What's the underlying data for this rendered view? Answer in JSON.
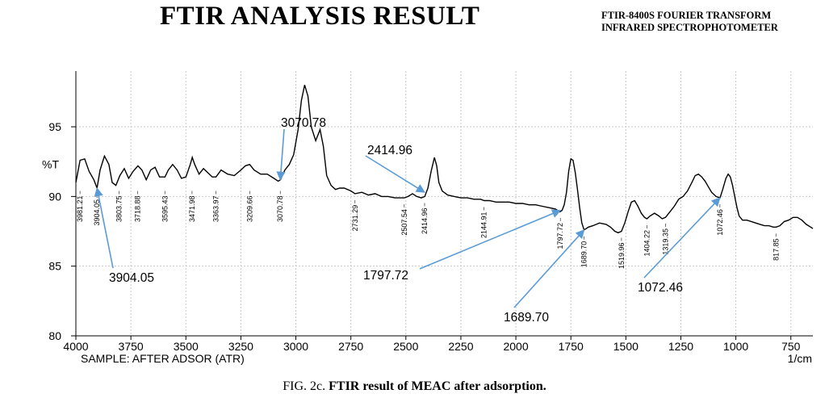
{
  "title": "FTIR ANALYSIS RESULT",
  "instrument_line1": "FTIR-8400S FOURIER TRANSFORM",
  "instrument_line2": "INFRARED SPECTROPHOTOMETER",
  "caption_prefix": "FIG. 2c.",
  "caption_text": "FTIR result of MEAC after adsorption.",
  "colors": {
    "spectrum": "#000000",
    "arrow": "#5b9bd5",
    "grid": "#c8c8c8"
  },
  "chart_data": {
    "type": "line",
    "xlabel": "SAMPLE: AFTER ADSOR (ATR)",
    "xunit": "1/cm",
    "ylabel": "%T",
    "xlim": [
      4000,
      650
    ],
    "ylim": [
      80,
      99
    ],
    "x_ticks": [
      4000,
      3750,
      3500,
      3250,
      3000,
      2750,
      2500,
      2250,
      2000,
      1750,
      1500,
      1250,
      1000,
      750
    ],
    "x_tick_labels": [
      "4000",
      "3750",
      "3500",
      "3250",
      "3000",
      "2750",
      "2500",
      "2250",
      "2000",
      "1750",
      "1500",
      "1250",
      "1000",
      "750"
    ],
    "y_ticks": [
      80,
      85,
      90,
      95
    ],
    "y_tick_labels": [
      "80",
      "85",
      "90",
      "95"
    ],
    "grid": true,
    "series": [
      {
        "points": [
          [
            4000,
            91.0
          ],
          [
            3981,
            92.6
          ],
          [
            3960,
            92.7
          ],
          [
            3940,
            91.8
          ],
          [
            3918,
            91.2
          ],
          [
            3904,
            90.6
          ],
          [
            3890,
            91.9
          ],
          [
            3870,
            92.9
          ],
          [
            3850,
            92.3
          ],
          [
            3835,
            91.0
          ],
          [
            3818,
            90.8
          ],
          [
            3800,
            91.5
          ],
          [
            3780,
            92.0
          ],
          [
            3760,
            91.3
          ],
          [
            3740,
            91.8
          ],
          [
            3718,
            92.2
          ],
          [
            3700,
            91.9
          ],
          [
            3680,
            91.2
          ],
          [
            3660,
            91.9
          ],
          [
            3640,
            92.1
          ],
          [
            3620,
            91.4
          ],
          [
            3595,
            91.4
          ],
          [
            3580,
            91.9
          ],
          [
            3560,
            92.3
          ],
          [
            3540,
            91.9
          ],
          [
            3520,
            91.3
          ],
          [
            3500,
            91.4
          ],
          [
            3480,
            92.3
          ],
          [
            3471,
            92.8
          ],
          [
            3460,
            92.3
          ],
          [
            3440,
            91.6
          ],
          [
            3420,
            92.0
          ],
          [
            3400,
            91.7
          ],
          [
            3380,
            91.4
          ],
          [
            3363,
            91.4
          ],
          [
            3340,
            91.9
          ],
          [
            3310,
            91.6
          ],
          [
            3280,
            91.5
          ],
          [
            3250,
            91.9
          ],
          [
            3230,
            92.2
          ],
          [
            3210,
            92.3
          ],
          [
            3190,
            91.9
          ],
          [
            3160,
            91.6
          ],
          [
            3130,
            91.6
          ],
          [
            3100,
            91.3
          ],
          [
            3080,
            91.1
          ],
          [
            3070,
            91.2
          ],
          [
            3050,
            91.9
          ],
          [
            3030,
            92.3
          ],
          [
            3010,
            93.0
          ],
          [
            2990,
            94.8
          ],
          [
            2975,
            96.9
          ],
          [
            2960,
            98.0
          ],
          [
            2945,
            97.2
          ],
          [
            2930,
            95.0
          ],
          [
            2910,
            94.0
          ],
          [
            2890,
            94.8
          ],
          [
            2875,
            93.6
          ],
          [
            2860,
            91.5
          ],
          [
            2840,
            90.8
          ],
          [
            2820,
            90.5
          ],
          [
            2800,
            90.6
          ],
          [
            2780,
            90.6
          ],
          [
            2750,
            90.4
          ],
          [
            2731,
            90.2
          ],
          [
            2700,
            90.3
          ],
          [
            2670,
            90.1
          ],
          [
            2640,
            90.2
          ],
          [
            2610,
            90.0
          ],
          [
            2580,
            90.0
          ],
          [
            2550,
            89.9
          ],
          [
            2520,
            89.9
          ],
          [
            2507,
            89.9
          ],
          [
            2490,
            90.0
          ],
          [
            2470,
            90.2
          ],
          [
            2450,
            90.0
          ],
          [
            2430,
            89.9
          ],
          [
            2414,
            90.0
          ],
          [
            2400,
            90.6
          ],
          [
            2385,
            91.8
          ],
          [
            2370,
            92.8
          ],
          [
            2360,
            92.2
          ],
          [
            2350,
            91.0
          ],
          [
            2335,
            90.4
          ],
          [
            2310,
            90.1
          ],
          [
            2280,
            90.0
          ],
          [
            2250,
            89.9
          ],
          [
            2220,
            89.9
          ],
          [
            2190,
            89.8
          ],
          [
            2160,
            89.8
          ],
          [
            2144,
            89.7
          ],
          [
            2120,
            89.7
          ],
          [
            2090,
            89.6
          ],
          [
            2060,
            89.6
          ],
          [
            2030,
            89.6
          ],
          [
            2000,
            89.5
          ],
          [
            1970,
            89.5
          ],
          [
            1940,
            89.4
          ],
          [
            1910,
            89.4
          ],
          [
            1880,
            89.3
          ],
          [
            1850,
            89.2
          ],
          [
            1820,
            89.1
          ],
          [
            1800,
            88.9
          ],
          [
            1790,
            89.0
          ],
          [
            1780,
            89.4
          ],
          [
            1770,
            90.3
          ],
          [
            1760,
            91.8
          ],
          [
            1750,
            92.7
          ],
          [
            1740,
            92.6
          ],
          [
            1730,
            91.7
          ],
          [
            1720,
            90.5
          ],
          [
            1710,
            89.2
          ],
          [
            1700,
            88.1
          ],
          [
            1690,
            87.6
          ],
          [
            1670,
            87.8
          ],
          [
            1650,
            87.9
          ],
          [
            1620,
            88.1
          ],
          [
            1590,
            88.0
          ],
          [
            1570,
            87.8
          ],
          [
            1550,
            87.5
          ],
          [
            1535,
            87.4
          ],
          [
            1520,
            87.5
          ],
          [
            1505,
            88.1
          ],
          [
            1490,
            88.9
          ],
          [
            1475,
            89.6
          ],
          [
            1460,
            89.7
          ],
          [
            1445,
            89.3
          ],
          [
            1430,
            88.8
          ],
          [
            1415,
            88.5
          ],
          [
            1404,
            88.4
          ],
          [
            1390,
            88.6
          ],
          [
            1370,
            88.8
          ],
          [
            1350,
            88.6
          ],
          [
            1335,
            88.4
          ],
          [
            1320,
            88.5
          ],
          [
            1300,
            88.9
          ],
          [
            1280,
            89.3
          ],
          [
            1260,
            89.8
          ],
          [
            1240,
            90.0
          ],
          [
            1220,
            90.4
          ],
          [
            1200,
            91.0
          ],
          [
            1185,
            91.5
          ],
          [
            1170,
            91.6
          ],
          [
            1155,
            91.4
          ],
          [
            1140,
            91.1
          ],
          [
            1125,
            90.7
          ],
          [
            1110,
            90.3
          ],
          [
            1090,
            90.0
          ],
          [
            1072,
            89.9
          ],
          [
            1060,
            90.5
          ],
          [
            1045,
            91.3
          ],
          [
            1035,
            91.6
          ],
          [
            1025,
            91.4
          ],
          [
            1015,
            90.8
          ],
          [
            1005,
            90.0
          ],
          [
            995,
            89.2
          ],
          [
            985,
            88.6
          ],
          [
            970,
            88.3
          ],
          [
            950,
            88.3
          ],
          [
            930,
            88.2
          ],
          [
            910,
            88.1
          ],
          [
            890,
            88.0
          ],
          [
            870,
            87.9
          ],
          [
            850,
            87.9
          ],
          [
            830,
            87.8
          ],
          [
            817,
            87.8
          ],
          [
            800,
            87.9
          ],
          [
            780,
            88.2
          ],
          [
            760,
            88.3
          ],
          [
            740,
            88.5
          ],
          [
            720,
            88.5
          ],
          [
            700,
            88.3
          ],
          [
            680,
            88.0
          ],
          [
            660,
            87.8
          ],
          [
            650,
            87.7
          ]
        ]
      }
    ],
    "peak_labels": [
      {
        "x": 3981.21,
        "label": "3981.21"
      },
      {
        "x": 3904.05,
        "label": "3904.05"
      },
      {
        "x": 3803.75,
        "label": "3803.75"
      },
      {
        "x": 3718.88,
        "label": "3718.88"
      },
      {
        "x": 3595.43,
        "label": "3595.43"
      },
      {
        "x": 3471.98,
        "label": "3471.98"
      },
      {
        "x": 3363.97,
        "label": "3363.97"
      },
      {
        "x": 3209.66,
        "label": "3209.66"
      },
      {
        "x": 3070.78,
        "label": "3070.78"
      },
      {
        "x": 2731.29,
        "label": "2731.29"
      },
      {
        "x": 2507.54,
        "label": "2507.54"
      },
      {
        "x": 2414.96,
        "label": "2414.96"
      },
      {
        "x": 2144.91,
        "label": "2144.91"
      },
      {
        "x": 1797.72,
        "label": "1797.72"
      },
      {
        "x": 1689.7,
        "label": "1689.70"
      },
      {
        "x": 1519.96,
        "label": "1519.96"
      },
      {
        "x": 1404.22,
        "label": "1404.22"
      },
      {
        "x": 1319.35,
        "label": "1319.35"
      },
      {
        "x": 1072.46,
        "label": "1072.46"
      },
      {
        "x": 817.85,
        "label": "817.85"
      }
    ],
    "annotations": [
      {
        "label": "3070.78",
        "x": 3070.78,
        "y": 91.2
      },
      {
        "label": "2414.96",
        "x": 2414.96,
        "y": 90.3
      },
      {
        "label": "3904.05",
        "x": 3904.05,
        "y": 90.6
      },
      {
        "label": "1797.72",
        "x": 1797.72,
        "y": 89.0
      },
      {
        "label": "1689.70",
        "x": 1689.7,
        "y": 87.6
      },
      {
        "label": "1072.46",
        "x": 1072.46,
        "y": 89.9
      }
    ]
  }
}
